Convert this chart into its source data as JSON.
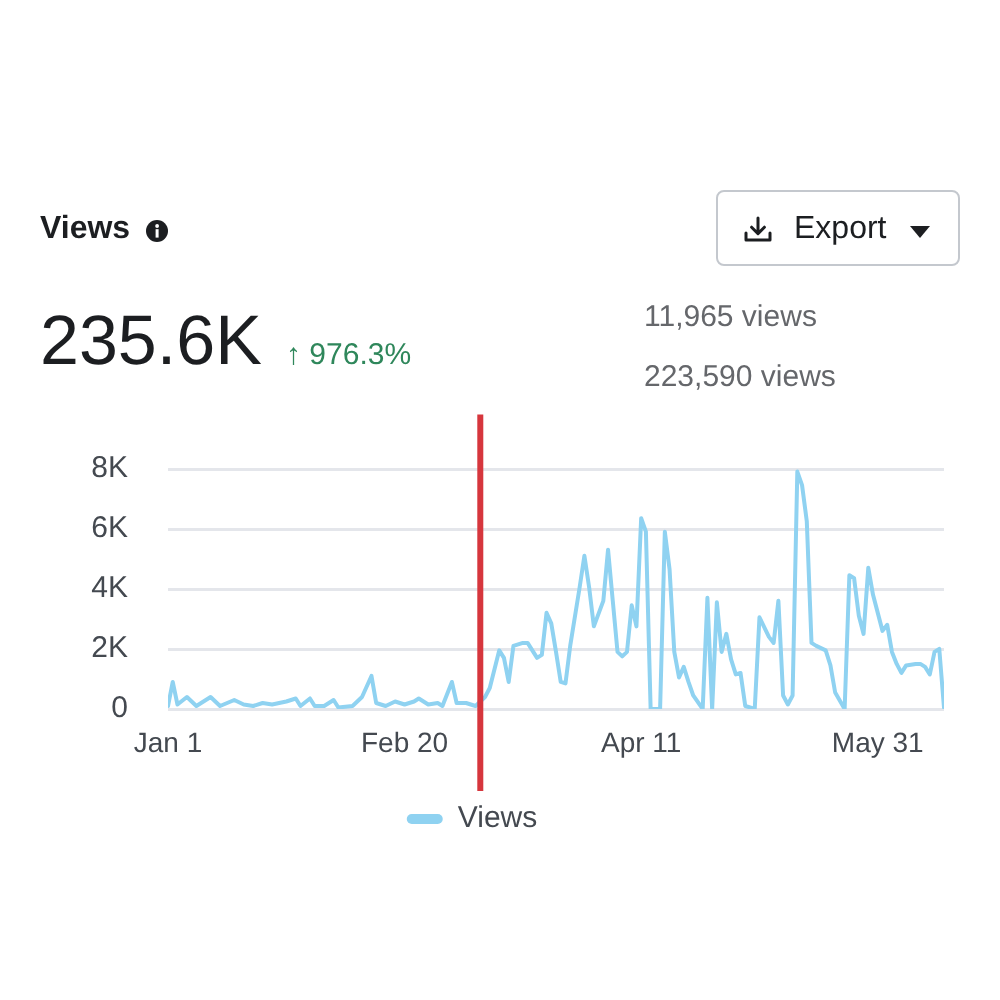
{
  "chart_data": {
    "type": "line",
    "title": "Views",
    "annotations": [
      "235.6K",
      "↑ 976.3%",
      "11,965 views",
      "223,590 views",
      "Export"
    ],
    "x": [
      "--01-01",
      "--01-02",
      "--01-03",
      "--01-05",
      "--01-07",
      "--01-10",
      "--01-12",
      "--01-15",
      "--01-17",
      "--01-19",
      "--01-21",
      "--01-23",
      "--01-26",
      "--01-28",
      "--01-29",
      "--01-31",
      "--02-01",
      "--02-03",
      "--02-05",
      "--02-06",
      "--02-09",
      "--02-11",
      "--02-13",
      "--02-14",
      "--02-16",
      "--02-18",
      "--02-20",
      "--02-22",
      "--02-23",
      "--02-25",
      "--02-27",
      "--02-28",
      "--03-02",
      "--03-03",
      "--03-05",
      "--03-07",
      "--03-09",
      "--03-10",
      "--03-12",
      "--03-13",
      "--03-14",
      "--03-15",
      "--03-17",
      "--03-18",
      "--03-20",
      "--03-21",
      "--03-22",
      "--03-23",
      "--03-24",
      "--03-25",
      "--03-26",
      "--03-27",
      "--03-29",
      "--03-30",
      "--03-31",
      "--04-01",
      "--04-03",
      "--04-04",
      "--04-05",
      "--04-06",
      "--04-07",
      "--04-08",
      "--04-09",
      "--04-10",
      "--04-11",
      "--04-12",
      "--04-13",
      "--04-15",
      "--04-16",
      "--04-17",
      "--04-18",
      "--04-19",
      "--04-20",
      "--04-21",
      "--04-22",
      "--04-24",
      "--04-25",
      "--04-26",
      "--04-27",
      "--04-28",
      "--04-29",
      "--04-30",
      "--05-01",
      "--05-02",
      "--05-03",
      "--05-05",
      "--05-06",
      "--05-08",
      "--05-09",
      "--05-10",
      "--05-11",
      "--05-12",
      "--05-13",
      "--05-14",
      "--05-15",
      "--05-16",
      "--05-17",
      "--05-18",
      "--05-20",
      "--05-21",
      "--05-22",
      "--05-24",
      "--05-25",
      "--05-26",
      "--05-27",
      "--05-28",
      "--05-29",
      "--05-30",
      "--06-01",
      "--06-02",
      "--06-03",
      "--06-04",
      "--06-05",
      "--06-06",
      "--06-08",
      "--06-09",
      "--06-10",
      "--06-11",
      "--06-12",
      "--06-13",
      "--06-14"
    ],
    "series": [
      {
        "name": "Views",
        "color": "#8fd2f1",
        "values": [
          100,
          900,
          150,
          400,
          100,
          400,
          100,
          300,
          150,
          100,
          200,
          150,
          250,
          350,
          100,
          350,
          100,
          100,
          300,
          50,
          100,
          400,
          1100,
          200,
          100,
          250,
          150,
          250,
          350,
          150,
          200,
          100,
          900,
          200,
          200,
          100,
          400,
          700,
          1950,
          1700,
          900,
          2100,
          2200,
          2200,
          1700,
          1800,
          3200,
          2850,
          1900,
          900,
          850,
          2100,
          4050,
          5100,
          4050,
          2750,
          3600,
          5300,
          3600,
          1900,
          1750,
          1900,
          3450,
          2750,
          6350,
          5900,
          0,
          0,
          5900,
          4650,
          1900,
          1050,
          1400,
          900,
          450,
          0,
          3700,
          0,
          3550,
          1900,
          2500,
          1650,
          1150,
          1200,
          100,
          0,
          3050,
          2400,
          2200,
          3600,
          450,
          150,
          450,
          7900,
          7450,
          6250,
          2200,
          2100,
          1950,
          1450,
          550,
          0,
          4450,
          4350,
          3100,
          2500,
          4700,
          3800,
          2600,
          2800,
          1900,
          1500,
          1200,
          1450,
          1500,
          1500,
          1400,
          1150,
          1900,
          2000,
          50
        ]
      }
    ],
    "xlim": [
      "--01-01",
      "--06-14"
    ],
    "xticks": [
      {
        "value": "--01-01",
        "label": "Jan 1"
      },
      {
        "value": "--02-20",
        "label": "Feb 20"
      },
      {
        "value": "--04-11",
        "label": "Apr 11"
      },
      {
        "value": "--05-31",
        "label": "May 31"
      }
    ],
    "ylim": [
      0,
      8000
    ],
    "yticks": [
      0,
      {
        "value": 2000,
        "label": "2K"
      },
      {
        "value": 4000,
        "label": "4K"
      },
      {
        "value": 6000,
        "label": "6K"
      },
      {
        "value": 8000,
        "label": "8K"
      }
    ],
    "grid": "y",
    "legend": "bottom",
    "marker": "none",
    "ref_lines": [
      {
        "axis": "x",
        "value": "--03-08",
        "color": "#d6363d"
      }
    ]
  }
}
